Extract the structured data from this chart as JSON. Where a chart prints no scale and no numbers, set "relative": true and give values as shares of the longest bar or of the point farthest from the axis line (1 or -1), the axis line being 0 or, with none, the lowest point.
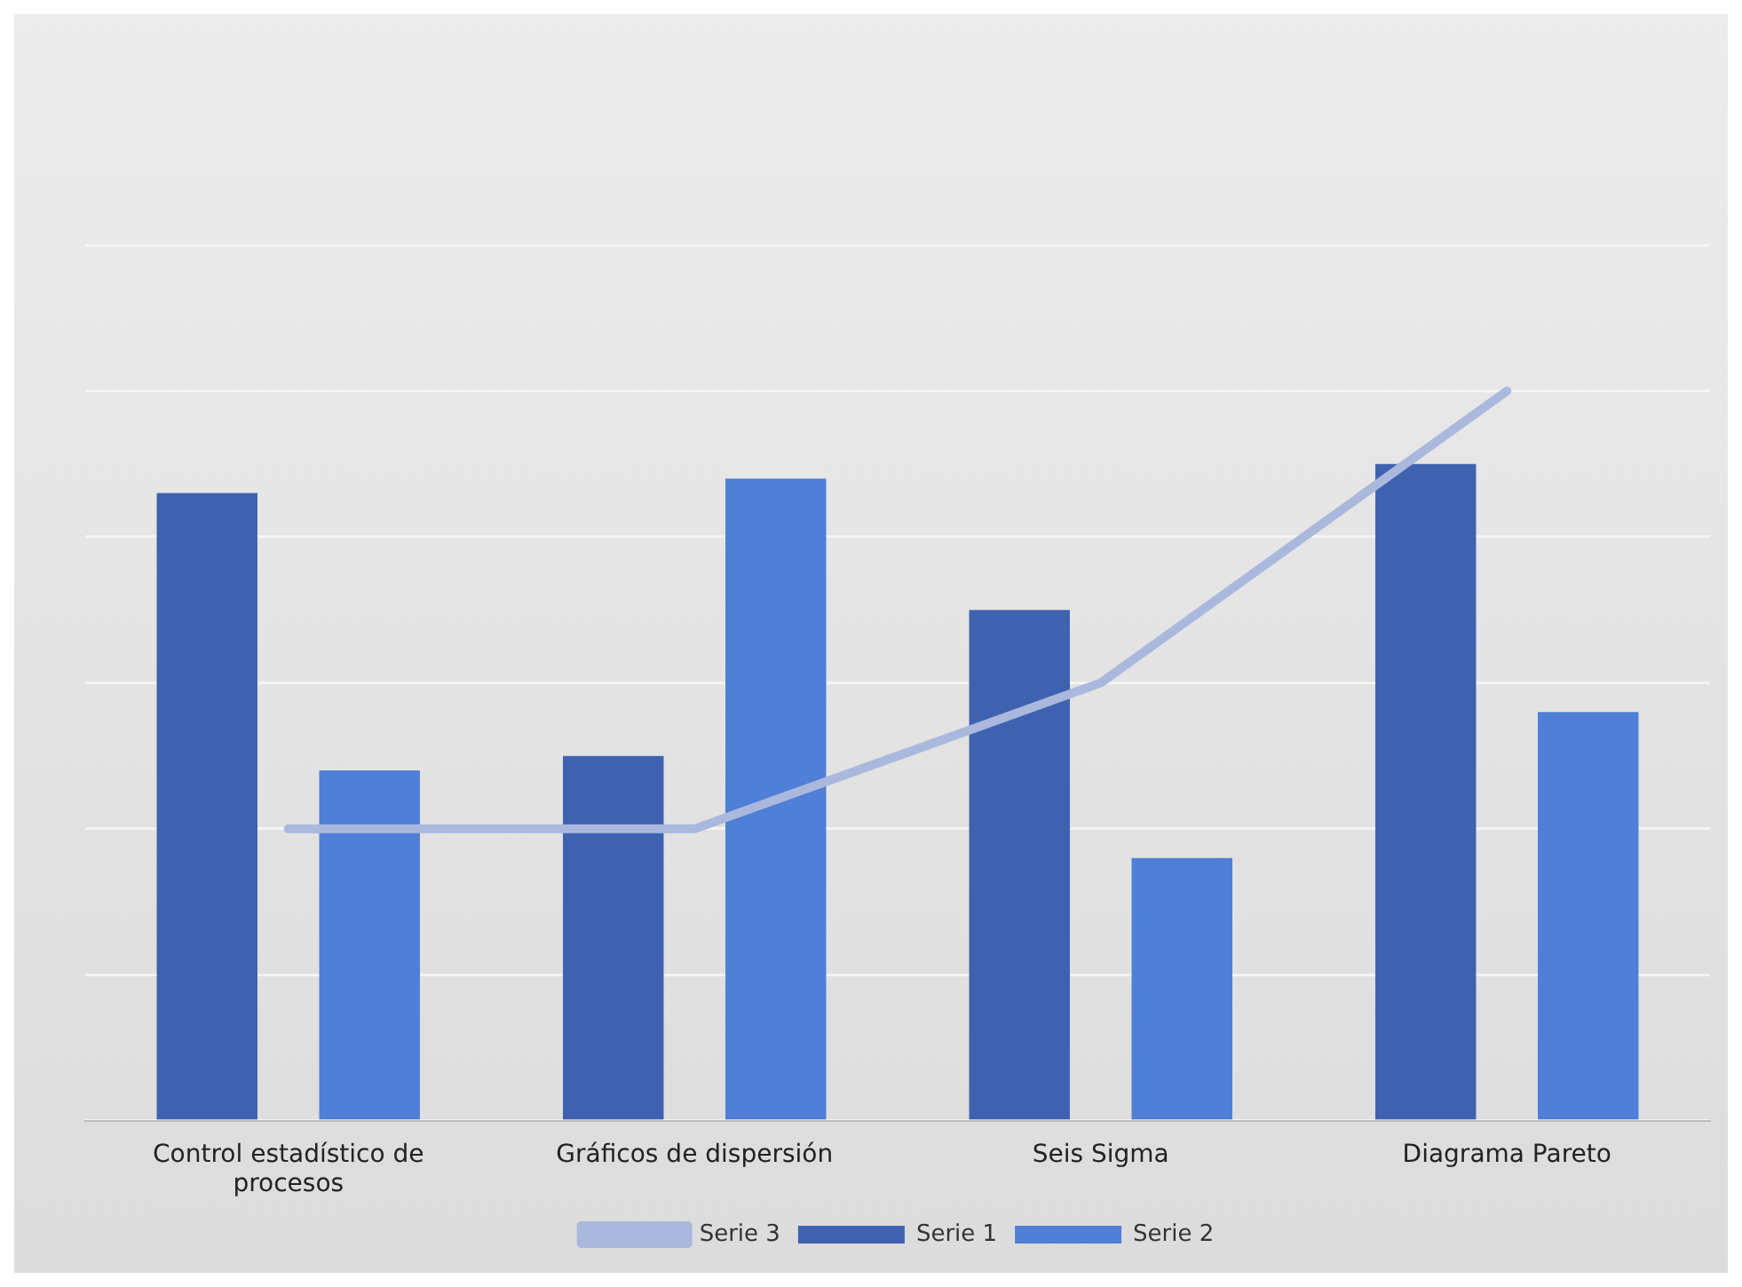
{
  "chart_data": {
    "type": "bar",
    "relative": true,
    "categories": [
      "Control estadístico de procesos",
      "Gráficos de dispersión",
      "Seis Sigma",
      "Diagrama Pareto"
    ],
    "series": [
      {
        "name": "Serie 1",
        "color": "#3f62b0",
        "values": [
          0.86,
          0.5,
          0.7,
          0.9
        ]
      },
      {
        "name": "Serie 2",
        "color": "#4f7fd6",
        "values": [
          0.48,
          0.88,
          0.36,
          0.56
        ]
      },
      {
        "name": "Serie 3",
        "type": "line",
        "color": "#a9b8dc",
        "values": [
          0.4,
          0.4,
          0.6,
          1
        ]
      }
    ],
    "grid": "y",
    "legend": "bottom",
    "marker": "none"
  }
}
